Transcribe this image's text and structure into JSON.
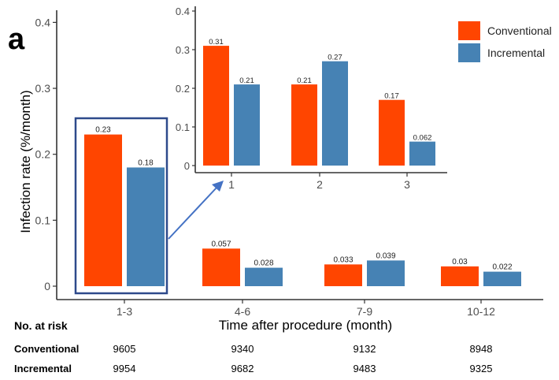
{
  "panel_label": "a",
  "colors": {
    "conventional": "#ff4500",
    "incremental": "#4682b4",
    "axis": "#333333",
    "tick_text": "#4d4d4d",
    "callout": "#2e4a8b",
    "arrow": "#4472c4"
  },
  "chart_data": [
    {
      "type": "bar",
      "role": "main",
      "categories": [
        "1-3",
        "4-6",
        "7-9",
        "10-12"
      ],
      "series": [
        {
          "name": "Conventional",
          "values": [
            0.23,
            0.057,
            0.033,
            0.03
          ],
          "labels": [
            "0.23",
            "0.057",
            "0.033",
            "0.03"
          ]
        },
        {
          "name": "Incremental",
          "values": [
            0.18,
            0.028,
            0.039,
            0.022
          ],
          "labels": [
            "0.18",
            "0.028",
            "0.039",
            "0.022"
          ]
        }
      ],
      "xlabel": "Time after procedure (month)",
      "ylabel": "Infection rate (%/month)",
      "ylim": [
        0,
        0.4
      ],
      "yticks": [
        0,
        0.1,
        0.2,
        0.3,
        0.4
      ],
      "ytick_labels": [
        "0",
        "0.1",
        "0.2",
        "0.3",
        "0.4"
      ],
      "legend": {
        "position": "top-right",
        "entries": [
          "Conventional",
          "Incremental"
        ]
      },
      "grid": false
    },
    {
      "type": "bar",
      "role": "inset",
      "categories": [
        "1",
        "2",
        "3"
      ],
      "series": [
        {
          "name": "Conventional",
          "values": [
            0.31,
            0.21,
            0.17
          ],
          "labels": [
            "0.31",
            "0.21",
            "0.17"
          ]
        },
        {
          "name": "Incremental",
          "values": [
            0.21,
            0.27,
            0.062
          ],
          "labels": [
            "0.21",
            "0.27",
            "0.062"
          ]
        }
      ],
      "ylim": [
        0,
        0.4
      ],
      "yticks": [
        0,
        0.1,
        0.2,
        0.3,
        0.4
      ],
      "ytick_labels": [
        "0",
        "0.1",
        "0.2",
        "0.3",
        "0.4"
      ],
      "grid": false
    }
  ],
  "risk_table": {
    "title": "No. at risk",
    "rows": [
      {
        "label": "Conventional",
        "values": [
          "9605",
          "9340",
          "9132",
          "8948"
        ]
      },
      {
        "label": "Incremental",
        "values": [
          "9954",
          "9682",
          "9483",
          "9325"
        ]
      }
    ]
  }
}
